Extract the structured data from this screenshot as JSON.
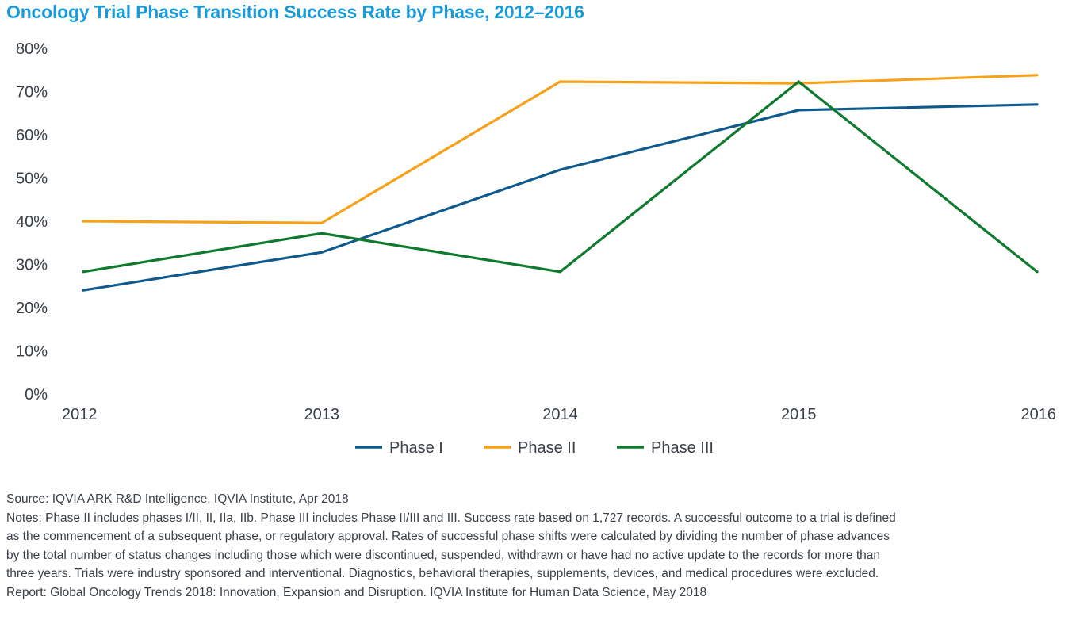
{
  "chart_data": {
    "type": "line",
    "title": "Oncology Trial Phase Transition Success Rate by Phase, 2012–2016",
    "xlabel": "",
    "ylabel": "",
    "x": [
      "2012",
      "2013",
      "2014",
      "2015",
      "2016"
    ],
    "ylim": [
      0,
      80
    ],
    "yticks": [
      0,
      10,
      20,
      30,
      40,
      50,
      60,
      70,
      80
    ],
    "ytick_labels": [
      "0%",
      "10%",
      "20%",
      "30%",
      "40%",
      "50%",
      "60%",
      "70%",
      "80%"
    ],
    "grid": false,
    "legend_position": "bottom-center",
    "series": [
      {
        "name": "Phase I",
        "color": "#0f5a8c",
        "values": [
          24.0,
          32.8,
          51.9,
          65.7,
          67.0
        ]
      },
      {
        "name": "Phase II",
        "color": "#f7a11a",
        "values": [
          40.0,
          39.6,
          72.3,
          71.9,
          73.8
        ]
      },
      {
        "name": "Phase III",
        "color": "#0e7a2e",
        "values": [
          28.3,
          37.2,
          28.3,
          72.3,
          28.3
        ]
      }
    ]
  },
  "footer": {
    "source": "Source: IQVIA ARK R&D Intelligence, IQVIA Institute, Apr 2018",
    "notes_lines": [
      "Notes: Phase II includes phases I/II, II, IIa, IIb. Phase III includes Phase II/III and III. Success rate based on 1,727 records. A successful outcome to a trial is defined",
      "as the commencement of a subsequent phase, or regulatory approval. Rates of successful phase shifts were calculated by dividing the number of phase advances",
      "by the total number of status changes including those which were discontinued, suspended, withdrawn or have had no active update to the records for more than",
      "three years. Trials were industry sponsored and interventional. Diagnostics, behavioral therapies, supplements, devices, and medical procedures were excluded."
    ],
    "report": "Report: Global Oncology Trends 2018: Innovation, Expansion and Disruption. IQVIA Institute for Human Data Science, May 2018"
  }
}
